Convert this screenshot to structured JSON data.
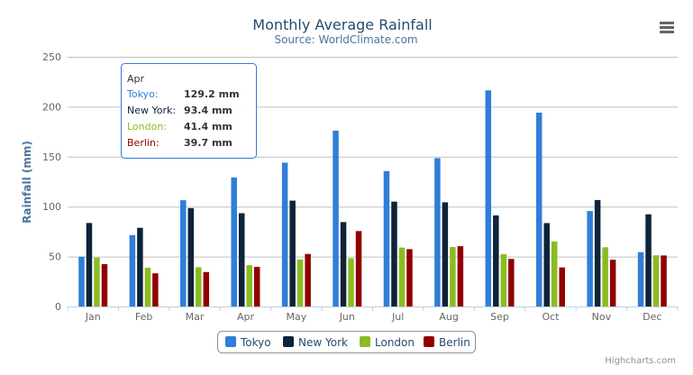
{
  "chart_data": {
    "type": "bar",
    "title": "Monthly Average Rainfall",
    "subtitle": "Source: WorldClimate.com",
    "xlabel": "",
    "ylabel": "Rainfall (mm)",
    "ylim": [
      0,
      250
    ],
    "yticks": [
      0,
      50,
      100,
      150,
      200,
      250
    ],
    "grid": true,
    "legend_position": "bottom",
    "categories": [
      "Jan",
      "Feb",
      "Mar",
      "Apr",
      "May",
      "Jun",
      "Jul",
      "Aug",
      "Sep",
      "Oct",
      "Nov",
      "Dec"
    ],
    "series": [
      {
        "name": "Tokyo",
        "color": "#2f7ed8",
        "values": [
          49.9,
          71.5,
          106.4,
          129.2,
          144.0,
          176.0,
          135.6,
          148.5,
          216.4,
          194.1,
          95.6,
          54.4
        ]
      },
      {
        "name": "New York",
        "color": "#0d233a",
        "values": [
          83.6,
          78.8,
          98.5,
          93.4,
          106.0,
          84.5,
          105.0,
          104.3,
          91.2,
          83.5,
          106.6,
          92.3
        ]
      },
      {
        "name": "London",
        "color": "#8bbc21",
        "values": [
          48.9,
          38.8,
          39.3,
          41.4,
          47.0,
          48.3,
          59.0,
          59.6,
          52.4,
          65.2,
          59.3,
          51.2
        ]
      },
      {
        "name": "Berlin",
        "color": "#910000",
        "values": [
          42.4,
          33.2,
          34.5,
          39.7,
          52.6,
          75.5,
          57.4,
          60.4,
          47.6,
          39.1,
          46.8,
          51.1
        ]
      }
    ],
    "tooltip": {
      "header": "Apr",
      "rows": [
        {
          "name": "Tokyo:",
          "value": "129.2 mm",
          "color": "#2f7ed8"
        },
        {
          "name": "New York:",
          "value": "93.4 mm",
          "color": "#0d233a"
        },
        {
          "name": "London:",
          "value": "41.4 mm",
          "color": "#8bbc21"
        },
        {
          "name": "Berlin:",
          "value": "39.7 mm",
          "color": "#910000"
        }
      ]
    }
  },
  "menu_icon": "hamburger-menu-icon",
  "credits": "Highcharts.com"
}
